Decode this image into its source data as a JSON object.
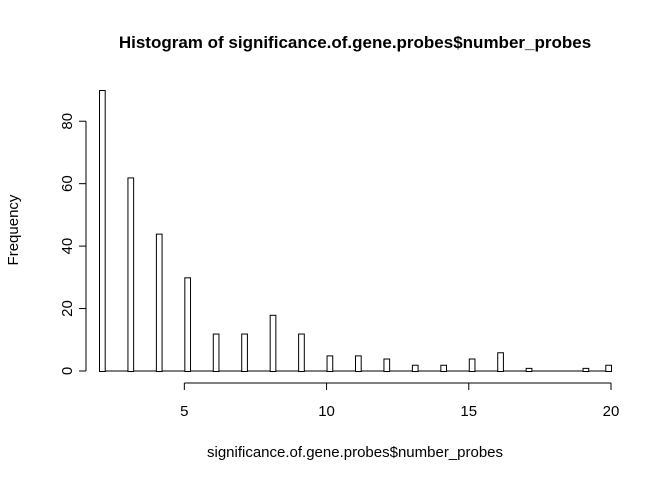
{
  "chart_data": {
    "type": "bar",
    "subtype": "histogram",
    "title": "Histogram of significance.of.gene.probes$number_probes",
    "xlabel": "significance.of.gene.probes$number_probes",
    "ylabel": "Frequency",
    "xlim": [
      2,
      20
    ],
    "ylim": [
      0,
      90
    ],
    "bin_width": 0.2,
    "xticks": [
      5,
      10,
      15,
      20
    ],
    "yticks": [
      0,
      20,
      40,
      60,
      80
    ],
    "grid": false,
    "legend": "none",
    "bins": [
      {
        "x_start": 2.0,
        "x_end": 2.2,
        "count": 90
      },
      {
        "x_start": 3.0,
        "x_end": 3.2,
        "count": 62
      },
      {
        "x_start": 4.0,
        "x_end": 4.2,
        "count": 44
      },
      {
        "x_start": 5.0,
        "x_end": 5.2,
        "count": 30
      },
      {
        "x_start": 6.0,
        "x_end": 6.2,
        "count": 12
      },
      {
        "x_start": 7.0,
        "x_end": 7.2,
        "count": 12
      },
      {
        "x_start": 8.0,
        "x_end": 8.2,
        "count": 18
      },
      {
        "x_start": 9.0,
        "x_end": 9.2,
        "count": 12
      },
      {
        "x_start": 10.0,
        "x_end": 10.2,
        "count": 5
      },
      {
        "x_start": 11.0,
        "x_end": 11.2,
        "count": 5
      },
      {
        "x_start": 12.0,
        "x_end": 12.2,
        "count": 4
      },
      {
        "x_start": 13.0,
        "x_end": 13.2,
        "count": 2
      },
      {
        "x_start": 14.0,
        "x_end": 14.2,
        "count": 2
      },
      {
        "x_start": 15.0,
        "x_end": 15.2,
        "count": 4
      },
      {
        "x_start": 16.0,
        "x_end": 16.2,
        "count": 6
      },
      {
        "x_start": 17.0,
        "x_end": 17.2,
        "count": 1
      },
      {
        "x_start": 19.0,
        "x_end": 19.2,
        "count": 1
      },
      {
        "x_start": 19.8,
        "x_end": 20.0,
        "count": 2
      }
    ],
    "bar_fill": "#ffffff",
    "bar_stroke": "#000000"
  }
}
